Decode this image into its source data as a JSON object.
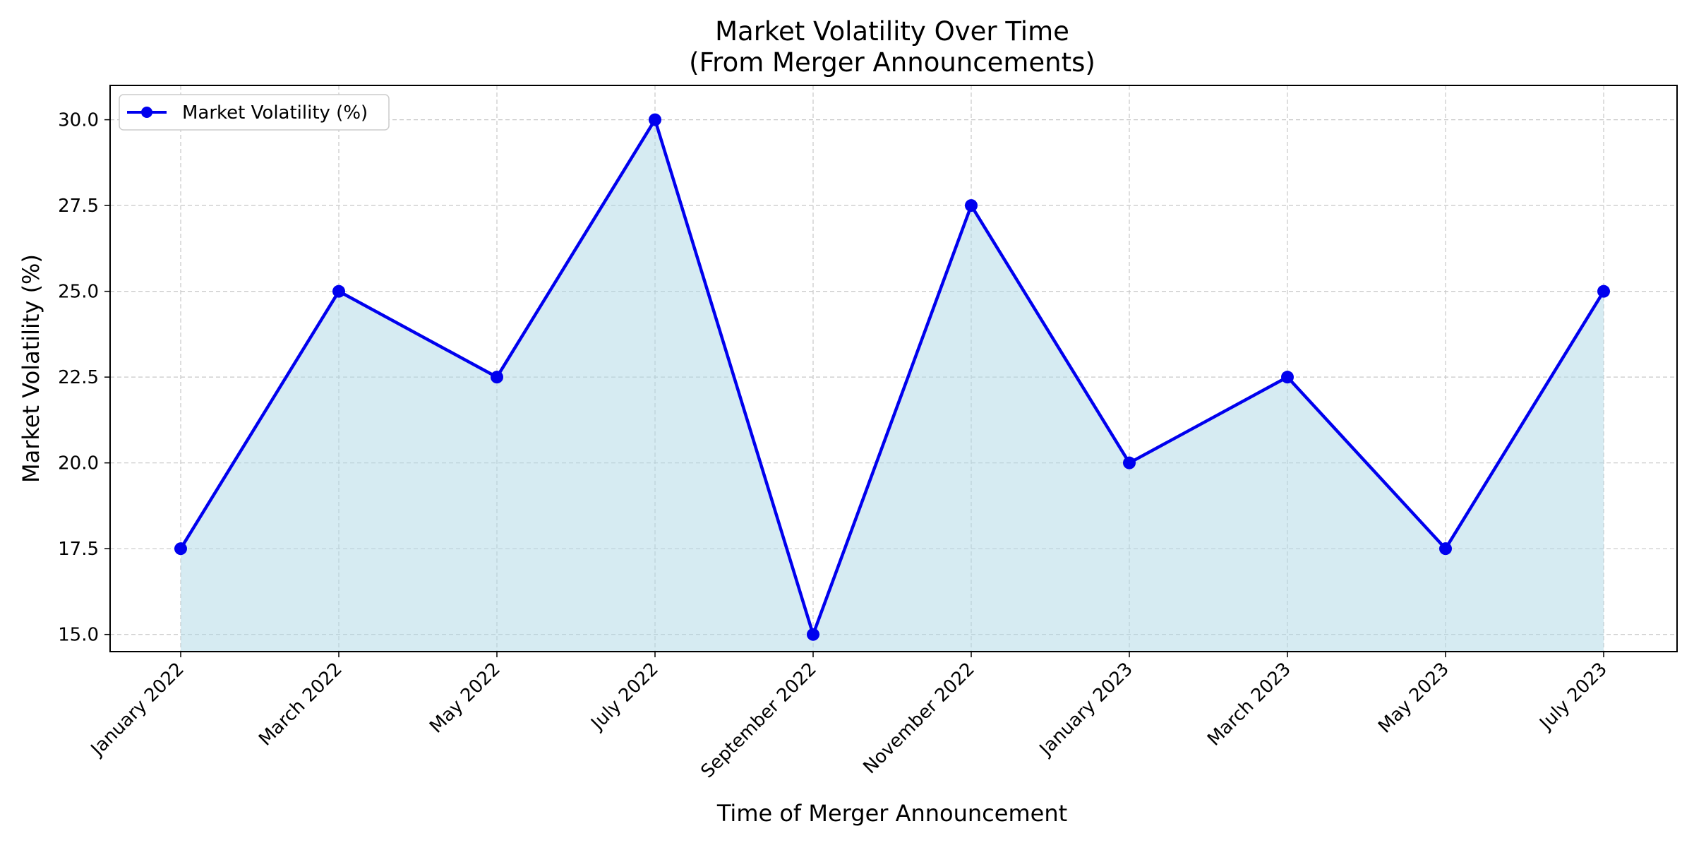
{
  "chart_data": {
    "type": "line",
    "title_line1": "Market Volatility Over Time",
    "title_line2": "(From Merger Announcements)",
    "xlabel": "Time of Merger Announcement",
    "ylabel": "Market Volatility (%)",
    "categories": [
      "January 2022",
      "March 2022",
      "May 2022",
      "July 2022",
      "September 2022",
      "November 2022",
      "January 2023",
      "March 2023",
      "May 2023",
      "July 2023"
    ],
    "series": [
      {
        "name": "Market Volatility (%)",
        "values": [
          17.5,
          25.0,
          22.5,
          30.0,
          15.0,
          27.5,
          20.0,
          22.5,
          17.5,
          25.0
        ]
      }
    ],
    "ylim": [
      14.5,
      31.0
    ],
    "yticks": [
      "15.0",
      "17.5",
      "20.0",
      "22.5",
      "25.0",
      "27.5",
      "30.0"
    ],
    "grid": true,
    "legend_position": "top-left",
    "colors": {
      "line": "#0000ee",
      "fill": "#add8e6",
      "grid": "#c8c8c8"
    }
  }
}
